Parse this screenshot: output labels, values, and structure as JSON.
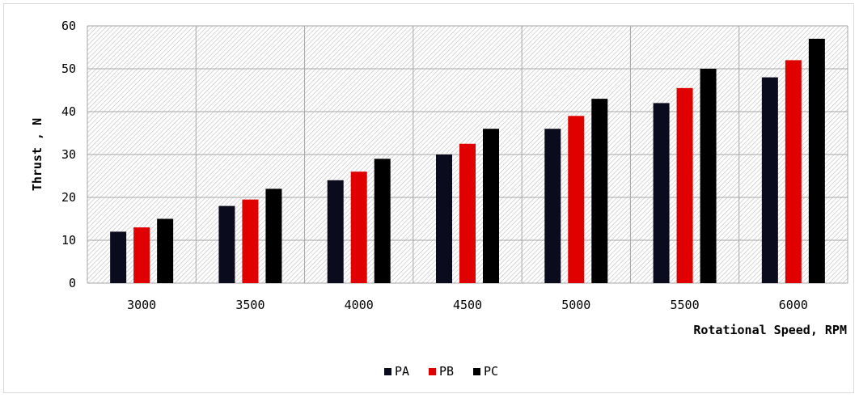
{
  "chart_data": {
    "type": "bar",
    "title": "",
    "xlabel": "Rotational Speed, RPM",
    "ylabel": "Thrust , N",
    "categories": [
      "3000",
      "3500",
      "4000",
      "4500",
      "5000",
      "5500",
      "6000"
    ],
    "series": [
      {
        "name": "PA",
        "color": "#0b0b1e",
        "values": [
          12,
          18,
          24,
          30,
          36,
          42,
          48
        ]
      },
      {
        "name": "PB",
        "color": "#e00000",
        "values": [
          13,
          19.5,
          26,
          32.5,
          39,
          45.5,
          52
        ]
      },
      {
        "name": "PC",
        "color": "#000000",
        "values": [
          15,
          22,
          29,
          36,
          43,
          50,
          57
        ]
      }
    ],
    "ylim": [
      0,
      60
    ],
    "yticks": [
      0,
      10,
      20,
      30,
      40,
      50,
      60
    ],
    "grid": true,
    "plot_background": "hatched",
    "legend_position": "bottom"
  }
}
